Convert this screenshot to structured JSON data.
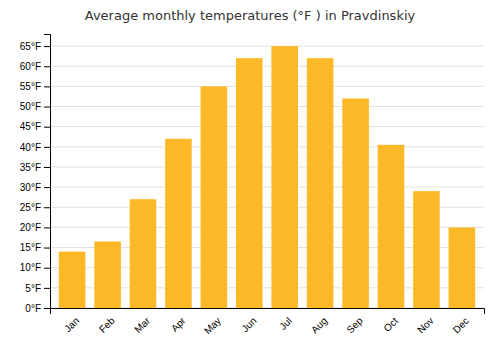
{
  "chart_data": {
    "type": "bar",
    "title": "Average monthly temperatures (°F ) in Pravdinskiy",
    "categories": [
      "Jan",
      "Feb",
      "Mar",
      "Apr",
      "May",
      "Jun",
      "Jul",
      "Aug",
      "Sep",
      "Oct",
      "Nov",
      "Dec"
    ],
    "values": [
      14,
      16.5,
      27,
      42,
      55,
      62,
      65,
      62,
      52,
      40.5,
      29,
      20
    ],
    "color": "#FDB827",
    "ylim": [
      0,
      68
    ],
    "yticks": [
      {
        "value": 0,
        "label": "0°F"
      },
      {
        "value": 5,
        "label": "5°F"
      },
      {
        "value": 10,
        "label": "10°F"
      },
      {
        "value": 15,
        "label": "15°F"
      },
      {
        "value": 20,
        "label": "20°F"
      },
      {
        "value": 25,
        "label": "25°F"
      },
      {
        "value": 30,
        "label": "30°F"
      },
      {
        "value": 35,
        "label": "35°F"
      },
      {
        "value": 40,
        "label": "40°F"
      },
      {
        "value": 45,
        "label": "45°F"
      },
      {
        "value": 50,
        "label": "50°F"
      },
      {
        "value": 55,
        "label": "55°F"
      },
      {
        "value": 60,
        "label": "60°F"
      },
      {
        "value": 65,
        "label": "65°F"
      }
    ],
    "grid": true
  }
}
